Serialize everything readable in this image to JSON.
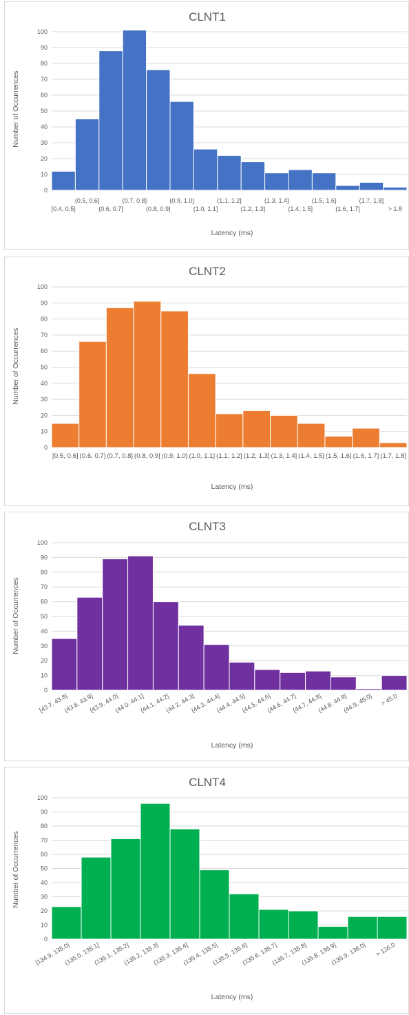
{
  "chart_data": [
    {
      "type": "bar",
      "title": "CLNT1",
      "xlabel": "Latency (ms)",
      "ylabel": "Number of Occurrences",
      "ylim": [
        0,
        100
      ],
      "yticks": [
        0,
        10,
        20,
        30,
        40,
        50,
        60,
        70,
        80,
        90,
        100
      ],
      "grid": true,
      "color": "#4472c4",
      "categories": [
        "[0.4, 0.5]",
        "(0.5, 0.6]",
        "(0.6, 0.7]",
        "(0.7, 0.8]",
        "(0.8, 0.9]",
        "(0.9, 1.0]",
        "(1.0, 1.1]",
        "(1.1, 1.2]",
        "(1.2, 1.3]",
        "(1.3, 1.4]",
        "(1.4, 1.5]",
        "(1.5, 1.6]",
        "(1.6, 1.7]",
        "(1.7, 1.8]",
        "> 1.8"
      ],
      "values": [
        12,
        45,
        88,
        101,
        76,
        56,
        26,
        22,
        18,
        11,
        13,
        11,
        3,
        5,
        2
      ]
    },
    {
      "type": "bar",
      "title": "CLNT2",
      "xlabel": "Latency (ms)",
      "ylabel": "Number of Occurrences",
      "ylim": [
        0,
        100
      ],
      "yticks": [
        0,
        10,
        20,
        30,
        40,
        50,
        60,
        70,
        80,
        90,
        100
      ],
      "grid": true,
      "color": "#ed7d31",
      "categories": [
        "[0.5, 0.6]",
        "(0.6, 0.7]",
        "(0.7, 0.8]",
        "(0.8, 0.9]",
        "(0.9, 1.0]",
        "(1.0, 1.1]",
        "(1.1, 1.2]",
        "(1.2, 1.3]",
        "(1.3, 1.4]",
        "(1.4, 1.5]",
        "(1.5, 1.6]",
        "(1.6, 1.7]",
        "(1.7, 1.8]"
      ],
      "values": [
        15,
        66,
        87,
        91,
        85,
        46,
        21,
        23,
        20,
        15,
        7,
        12,
        3
      ]
    },
    {
      "type": "bar",
      "title": "CLNT3",
      "xlabel": "Latency (ms)",
      "ylabel": "Number of Occurrences",
      "ylim": [
        0,
        100
      ],
      "yticks": [
        0,
        10,
        20,
        30,
        40,
        50,
        60,
        70,
        80,
        90,
        100
      ],
      "grid": true,
      "color": "#7030a0",
      "categories": [
        "[43.7, 43.8]",
        "(43.8, 43.9]",
        "(43.9, 44.0]",
        "(44.0, 44.1]",
        "(44.1, 44.2]",
        "(44.2, 44.3]",
        "(44.3, 44.4]",
        "(44.4, 44.5]",
        "(44.5, 44.6]",
        "(44.6, 44.7]",
        "(44.7, 44.8]",
        "(44.8, 44.9]",
        "(44.9, 45.0]",
        "> 45.0"
      ],
      "values": [
        35,
        63,
        89,
        91,
        60,
        44,
        31,
        19,
        14,
        12,
        13,
        9,
        1,
        10
      ]
    },
    {
      "type": "bar",
      "title": "CLNT4",
      "xlabel": "Latency (ms)",
      "ylabel": "Number of Occurrences",
      "ylim": [
        0,
        100
      ],
      "yticks": [
        0,
        10,
        20,
        30,
        40,
        50,
        60,
        70,
        80,
        90,
        100
      ],
      "grid": true,
      "color": "#00b050",
      "categories": [
        "[134.9, 135.0]",
        "(135.0, 135.1]",
        "(135.1, 135.2]",
        "(135.2, 135.3]",
        "(135.3, 135.4]",
        "(135.4, 135.5]",
        "(135.5, 135.6]",
        "(135.6, 135.7]",
        "(135.7, 135.8]",
        "(135.8, 135.9]",
        "(135.9, 136.0]",
        "> 136.0"
      ],
      "values": [
        23,
        58,
        71,
        96,
        78,
        49,
        32,
        21,
        20,
        9,
        16,
        16
      ]
    }
  ]
}
